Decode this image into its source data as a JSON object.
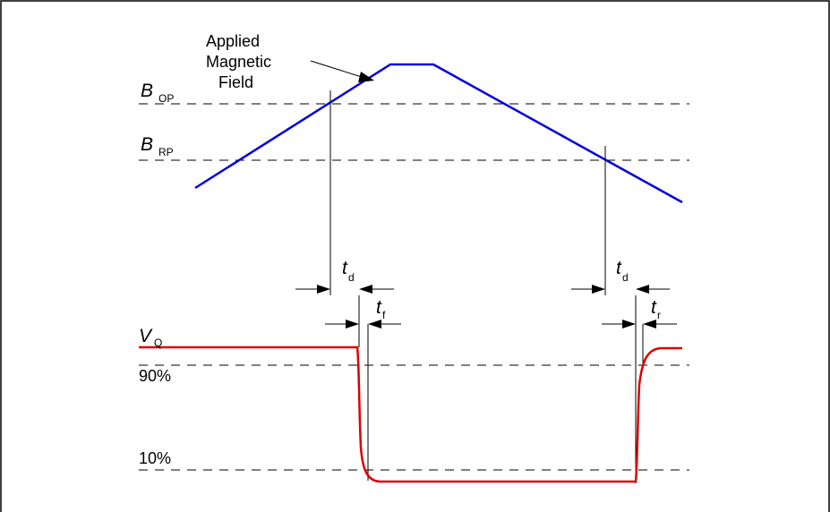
{
  "labels": {
    "field_line1": "Applied",
    "field_line2": "Magnetic",
    "field_line3": "Field",
    "b_op_main": "B",
    "b_op_sub": "OP",
    "b_rp_main": "B",
    "b_rp_sub": "RP",
    "v_q_main": "V",
    "v_q_sub": "Q",
    "pct_90": "90%",
    "pct_10": "10%",
    "td_main": "t",
    "td_sub": "d",
    "tf_main": "t",
    "tf_sub": "f",
    "tr_main": "t",
    "tr_sub": "r"
  },
  "colors": {
    "field_line": "#0000dd",
    "output_line": "#dd0000",
    "frame": "#000000"
  }
}
